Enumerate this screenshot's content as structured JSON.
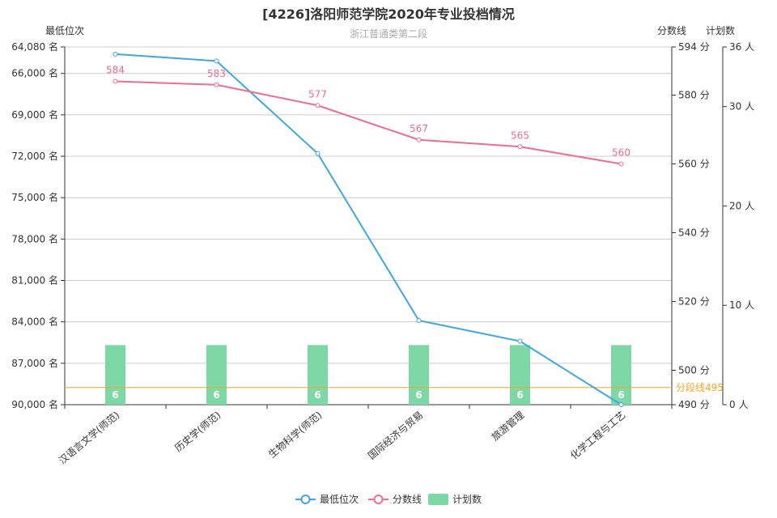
{
  "chart_data": {
    "type": "bar+line",
    "title": "[4226]洛阳师范学院2020年专业投档情况",
    "subtitle": "浙江普通类第二段",
    "categories": [
      "汉语言文学(师范)",
      "历史学(师范)",
      "生物科学(师范)",
      "国际经济与贸易",
      "旅游管理",
      "化学工程与工艺"
    ],
    "axes": {
      "rank": {
        "name": "最低位次",
        "min": 64080,
        "max": 90000,
        "inverted": true,
        "ticks": [
          "64,080 名",
          "66,000 名",
          "69,000 名",
          "72,000 名",
          "75,000 名",
          "78,000 名",
          "81,000 名",
          "84,000 名",
          "87,000 名",
          "90,000 名"
        ],
        "tick_values": [
          64080,
          66000,
          69000,
          72000,
          75000,
          78000,
          81000,
          84000,
          87000,
          90000
        ]
      },
      "score": {
        "name": "分数线",
        "min": 490,
        "max": 594,
        "ticks": [
          "594 分",
          "580 分",
          "560 分",
          "540 分",
          "520 分",
          "500 分",
          "490 分"
        ],
        "tick_values": [
          594,
          580,
          560,
          540,
          520,
          500,
          490
        ]
      },
      "plan": {
        "name": "计划数",
        "min": 0,
        "max": 36,
        "ticks": [
          "36 人",
          "30 人",
          "20 人",
          "10 人",
          "0 人"
        ],
        "tick_values": [
          36,
          30,
          20,
          10,
          0
        ]
      }
    },
    "series": [
      {
        "name": "最低位次",
        "type": "line",
        "color": "#3fa6e3",
        "values": [
          64600,
          65100,
          71800,
          83900,
          85400,
          90000
        ]
      },
      {
        "name": "分数线",
        "type": "line",
        "color": "#f06c8e",
        "values": [
          584,
          583,
          577,
          567,
          565,
          560
        ],
        "labels": [
          "584",
          "583",
          "577",
          "567",
          "565",
          "560"
        ]
      },
      {
        "name": "计划数",
        "type": "bar",
        "color": "#7dd8a5",
        "values": [
          6,
          6,
          6,
          6,
          6,
          6
        ],
        "labels": [
          "6",
          "6",
          "6",
          "6",
          "6",
          "6"
        ]
      }
    ],
    "markline": {
      "label": "分段线495",
      "value": 495,
      "color": "#f5a623"
    },
    "legend_position": "bottom-center",
    "grid": true
  }
}
